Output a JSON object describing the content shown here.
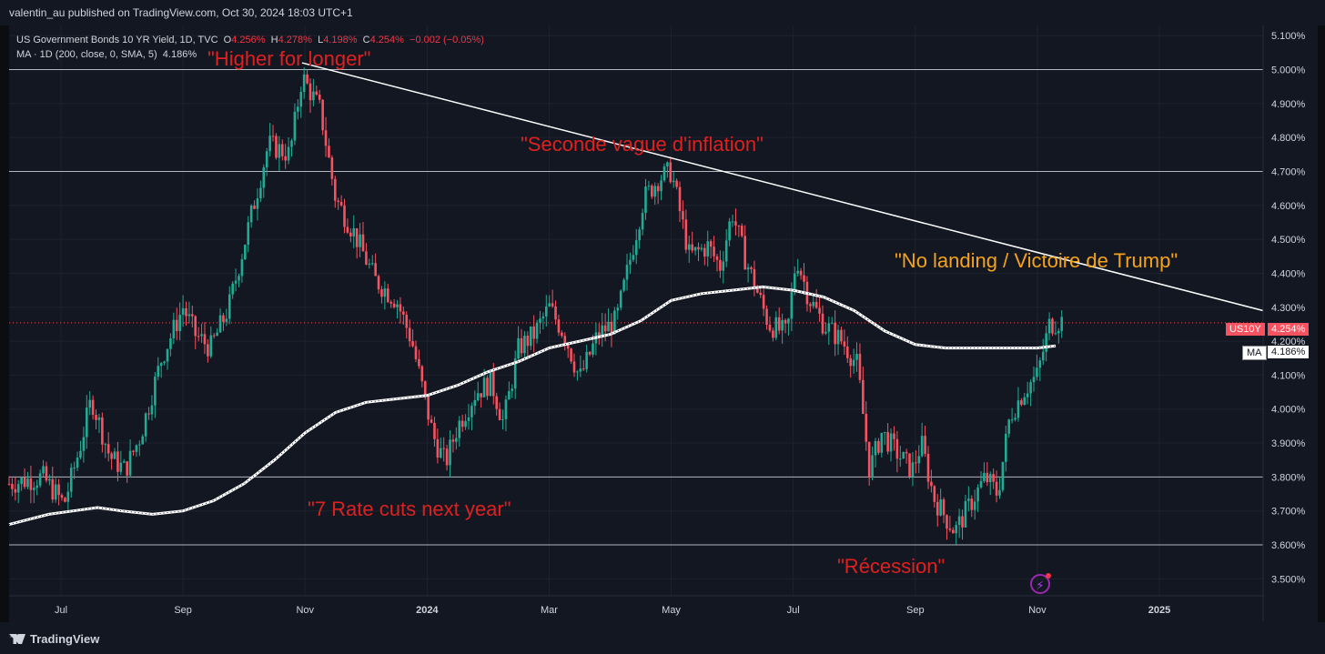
{
  "header": {
    "publish_line": "valentin_au published on TradingView.com, Oct 30, 2024 18:03 UTC+1"
  },
  "legend": {
    "symbol_line": "US Government Bonds 10 YR Yield, 1D, TVC",
    "o_label": "O",
    "o_val": "4.256%",
    "h_label": "H",
    "h_val": "4.278%",
    "l_label": "L",
    "l_val": "4.198%",
    "c_label": "C",
    "c_val": "4.254%",
    "change": "−0.002 (−0.05%)",
    "ma_line": "MA · 1D (200, close, 0, SMA, 5)",
    "ma_val": "4.186%"
  },
  "annotations": {
    "higher": "\"Higher for longer\"",
    "seconde": "\"Seconde vague d'inflation\"",
    "nolanding": "\"No landing / Victoire de Trump\"",
    "rates": "\"7 Rate cuts next year\"",
    "recession": "\"Récession\""
  },
  "price_tags": {
    "symbol": "US10Y",
    "price": "4.254%",
    "ma_label": "MA",
    "ma_price": "4.186%"
  },
  "footer": {
    "brand": "TradingView"
  },
  "colors": {
    "up": "#22ab94",
    "down": "#f7525f",
    "ma": "#ffffff",
    "trendline": "#ffffff",
    "annot_red": "#e0201f",
    "annot_orange": "#f5a31a"
  },
  "chart_data": {
    "type": "candlestick",
    "title": "US Government Bonds 10 YR Yield, 1D, TVC",
    "y_unit": "%",
    "ylim": [
      3.45,
      5.13
    ],
    "y_ticks": [
      "5.100%",
      "5.000%",
      "4.900%",
      "4.800%",
      "4.700%",
      "4.600%",
      "4.500%",
      "4.400%",
      "4.300%",
      "4.200%",
      "4.100%",
      "4.000%",
      "3.900%",
      "3.800%",
      "3.700%",
      "3.600%",
      "3.500%"
    ],
    "x_ticks": [
      {
        "label": "Jul",
        "month": 0
      },
      {
        "label": "Sep",
        "month": 2
      },
      {
        "label": "Nov",
        "month": 4
      },
      {
        "label": "2024",
        "month": 6
      },
      {
        "label": "Mar",
        "month": 8
      },
      {
        "label": "May",
        "month": 10
      },
      {
        "label": "Jul",
        "month": 12
      },
      {
        "label": "Sep",
        "month": 14
      },
      {
        "label": "Nov",
        "month": 16
      },
      {
        "label": "2025",
        "month": 18
      }
    ],
    "x_range_months": [
      -0.85,
      19.7
    ],
    "horizontal_levels": [
      5.0,
      4.7,
      3.8,
      3.6
    ],
    "current_price_line": 4.254,
    "trendline": [
      [
        3.95,
        5.02
      ],
      [
        19.7,
        4.29
      ]
    ],
    "price_path": [
      [
        -0.85,
        3.78
      ],
      [
        -0.3,
        3.8
      ],
      [
        0.05,
        3.72
      ],
      [
        0.3,
        3.88
      ],
      [
        0.5,
        4.03
      ],
      [
        0.8,
        3.86
      ],
      [
        1.05,
        3.82
      ],
      [
        1.3,
        3.92
      ],
      [
        1.65,
        4.15
      ],
      [
        2.0,
        4.3
      ],
      [
        2.2,
        4.22
      ],
      [
        2.45,
        4.18
      ],
      [
        2.75,
        4.3
      ],
      [
        3.05,
        4.52
      ],
      [
        3.4,
        4.78
      ],
      [
        3.75,
        4.75
      ],
      [
        3.95,
        4.98
      ],
      [
        4.25,
        4.88
      ],
      [
        4.5,
        4.62
      ],
      [
        4.8,
        4.52
      ],
      [
        5.15,
        4.38
      ],
      [
        5.5,
        4.32
      ],
      [
        5.75,
        4.2
      ],
      [
        6.1,
        3.92
      ],
      [
        6.3,
        3.84
      ],
      [
        6.5,
        3.95
      ],
      [
        6.8,
        4.05
      ],
      [
        7.05,
        4.08
      ],
      [
        7.25,
        3.96
      ],
      [
        7.5,
        4.18
      ],
      [
        7.75,
        4.22
      ],
      [
        8.0,
        4.3
      ],
      [
        8.25,
        4.22
      ],
      [
        8.5,
        4.09
      ],
      [
        8.8,
        4.22
      ],
      [
        9.1,
        4.26
      ],
      [
        9.3,
        4.42
      ],
      [
        9.55,
        4.62
      ],
      [
        9.8,
        4.68
      ],
      [
        10.0,
        4.7
      ],
      [
        10.3,
        4.45
      ],
      [
        10.6,
        4.48
      ],
      [
        10.8,
        4.42
      ],
      [
        11.0,
        4.58
      ],
      [
        11.2,
        4.45
      ],
      [
        11.4,
        4.35
      ],
      [
        11.6,
        4.25
      ],
      [
        11.9,
        4.22
      ],
      [
        12.05,
        4.45
      ],
      [
        12.25,
        4.33
      ],
      [
        12.5,
        4.25
      ],
      [
        12.8,
        4.2
      ],
      [
        13.05,
        4.13
      ],
      [
        13.25,
        3.82
      ],
      [
        13.45,
        3.93
      ],
      [
        13.75,
        3.86
      ],
      [
        13.95,
        3.82
      ],
      [
        14.1,
        3.9
      ],
      [
        14.3,
        3.74
      ],
      [
        14.5,
        3.68
      ],
      [
        14.65,
        3.64
      ],
      [
        14.9,
        3.72
      ],
      [
        15.15,
        3.8
      ],
      [
        15.35,
        3.75
      ],
      [
        15.55,
        3.98
      ],
      [
        15.8,
        4.06
      ],
      [
        16.0,
        4.1
      ],
      [
        16.2,
        4.25
      ],
      [
        16.4,
        4.26
      ]
    ],
    "ma_path": [
      [
        -0.85,
        3.66
      ],
      [
        -0.2,
        3.69
      ],
      [
        0.2,
        3.7
      ],
      [
        0.6,
        3.71
      ],
      [
        1.0,
        3.7
      ],
      [
        1.5,
        3.69
      ],
      [
        2.0,
        3.7
      ],
      [
        2.5,
        3.73
      ],
      [
        3.0,
        3.78
      ],
      [
        3.5,
        3.85
      ],
      [
        4.0,
        3.93
      ],
      [
        4.5,
        3.99
      ],
      [
        5.0,
        4.02
      ],
      [
        5.5,
        4.03
      ],
      [
        6.0,
        4.04
      ],
      [
        6.5,
        4.07
      ],
      [
        7.0,
        4.11
      ],
      [
        7.5,
        4.14
      ],
      [
        8.0,
        4.18
      ],
      [
        8.5,
        4.2
      ],
      [
        9.0,
        4.22
      ],
      [
        9.5,
        4.26
      ],
      [
        10.0,
        4.32
      ],
      [
        10.5,
        4.34
      ],
      [
        11.0,
        4.35
      ],
      [
        11.5,
        4.36
      ],
      [
        12.0,
        4.35
      ],
      [
        12.5,
        4.33
      ],
      [
        13.0,
        4.29
      ],
      [
        13.5,
        4.23
      ],
      [
        14.0,
        4.19
      ],
      [
        14.5,
        4.18
      ],
      [
        15.0,
        4.18
      ],
      [
        15.5,
        4.18
      ],
      [
        16.0,
        4.18
      ],
      [
        16.3,
        4.186
      ]
    ]
  }
}
